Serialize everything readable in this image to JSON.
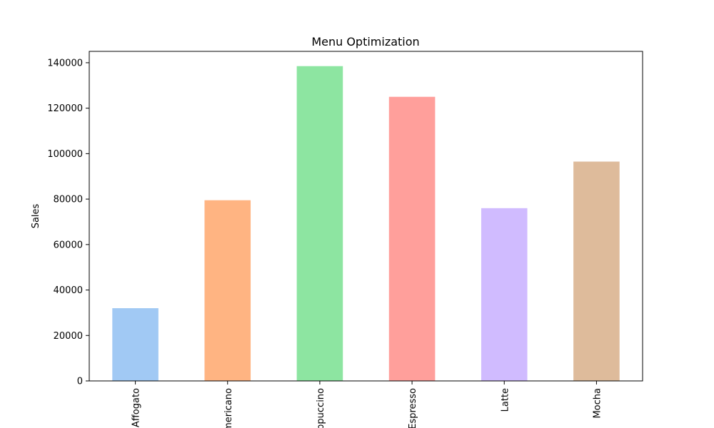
{
  "chart_data": {
    "type": "bar",
    "title": "Menu Optimization",
    "xlabel": "",
    "ylabel": "Sales",
    "categories": [
      "Affogato",
      "Americano",
      "Cappuccino",
      "Espresso",
      "Latte",
      "Mocha"
    ],
    "values": [
      32000,
      79500,
      138500,
      125000,
      76000,
      96500
    ],
    "colors": [
      "#a1c9f4",
      "#ffb482",
      "#8de5a1",
      "#ff9f9b",
      "#d0bbff",
      "#debb9b"
    ],
    "ylim": [
      0,
      145000
    ],
    "yticks": [
      0,
      20000,
      40000,
      60000,
      80000,
      100000,
      120000,
      140000
    ],
    "ytick_labels": [
      "0",
      "20000",
      "40000",
      "60000",
      "80000",
      "100000",
      "120000",
      "140000"
    ],
    "grid": false,
    "legend": "none"
  }
}
